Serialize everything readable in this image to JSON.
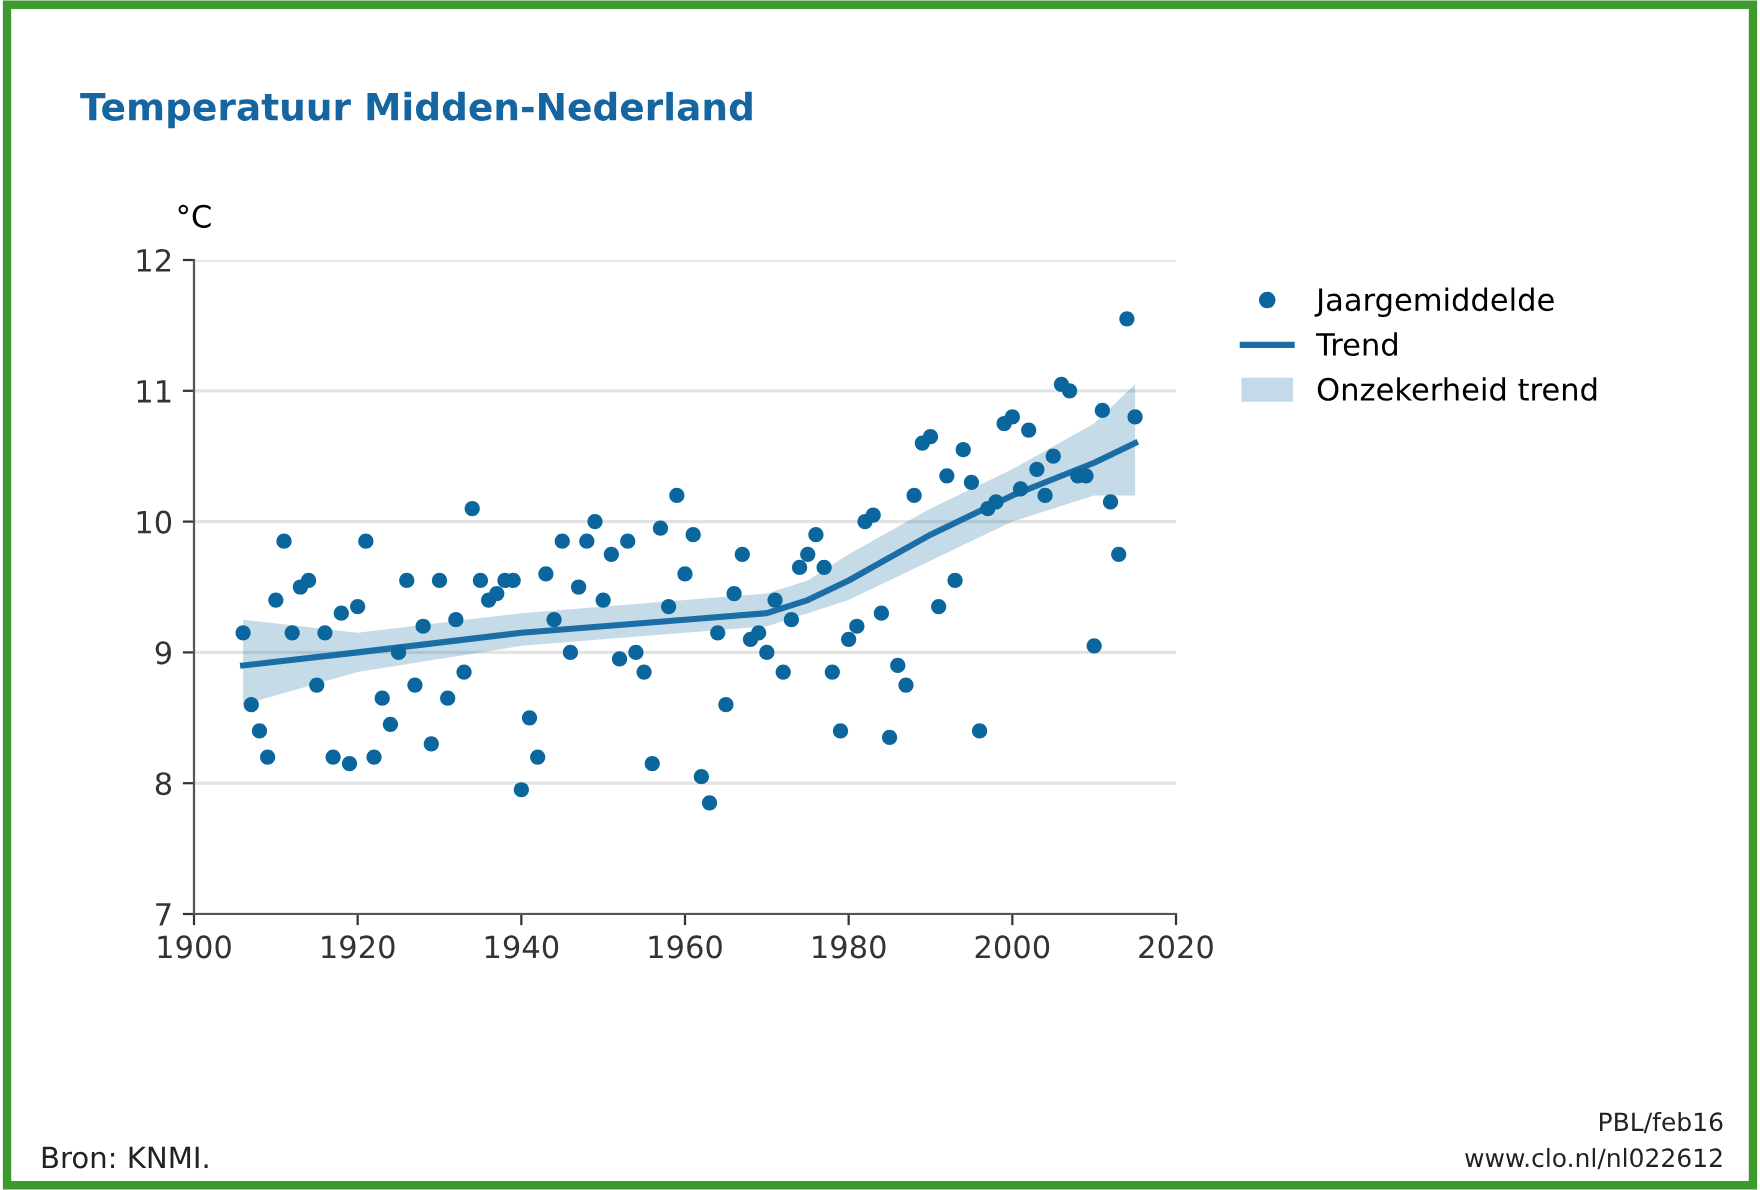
{
  "chart_data": {
    "type": "scatter",
    "title": "Temperatuur Midden-Nederland",
    "ylabel": "°C",
    "annotations": [
      "Onzekerheid trend",
      "Bron: KNMI.",
      "PBL/feb16",
      "www.clo.nl/nl022612"
    ],
    "xlim": [
      1900,
      2020
    ],
    "xticks": [
      1900,
      1920,
      1940,
      1960,
      1980,
      2000,
      2020
    ],
    "ylim": [
      7,
      12
    ],
    "yticks": [
      7,
      8,
      9,
      10,
      11,
      12
    ],
    "grid": "y",
    "legend": "top right",
    "series": [
      {
        "name": "Trend",
        "type": "line",
        "color": "#1b6ea5",
        "x": [
          1906,
          1920,
          1940,
          1960,
          1970,
          1975,
          1980,
          1990,
          2000,
          2010,
          2015
        ],
        "values": [
          8.9,
          9.0,
          9.15,
          9.25,
          9.3,
          9.4,
          9.55,
          9.9,
          10.2,
          10.45,
          10.6
        ],
        "lower": [
          8.6,
          8.85,
          9.05,
          9.15,
          9.2,
          9.3,
          9.4,
          9.7,
          10.0,
          10.2,
          10.2
        ],
        "upper": [
          9.25,
          9.15,
          9.3,
          9.4,
          9.45,
          9.55,
          9.75,
          10.1,
          10.4,
          10.75,
          11.05
        ]
      },
      {
        "name": "Jaargemiddelde",
        "marker": "circle",
        "color": "#0a669c",
        "x": [
          1906,
          1907,
          1908,
          1909,
          1910,
          1911,
          1912,
          1913,
          1914,
          1915,
          1916,
          1917,
          1918,
          1919,
          1920,
          1921,
          1922,
          1923,
          1924,
          1925,
          1926,
          1927,
          1928,
          1929,
          1930,
          1931,
          1932,
          1933,
          1934,
          1935,
          1936,
          1937,
          1938,
          1939,
          1940,
          1941,
          1942,
          1943,
          1944,
          1945,
          1946,
          1947,
          1948,
          1949,
          1950,
          1951,
          1952,
          1953,
          1954,
          1955,
          1956,
          1957,
          1958,
          1959,
          1960,
          1961,
          1962,
          1963,
          1964,
          1965,
          1966,
          1967,
          1968,
          1969,
          1970,
          1971,
          1972,
          1973,
          1974,
          1975,
          1976,
          1977,
          1978,
          1979,
          1980,
          1981,
          1982,
          1983,
          1984,
          1985,
          1986,
          1987,
          1988,
          1989,
          1990,
          1991,
          1992,
          1993,
          1994,
          1995,
          1996,
          1997,
          1998,
          1999,
          2000,
          2001,
          2002,
          2003,
          2004,
          2005,
          2006,
          2007,
          2008,
          2009,
          2010,
          2011,
          2012,
          2013,
          2014,
          2015
        ],
        "values": [
          9.15,
          8.6,
          8.4,
          8.2,
          9.4,
          9.85,
          9.15,
          9.5,
          9.55,
          8.75,
          9.15,
          8.2,
          9.3,
          8.15,
          9.35,
          9.85,
          8.2,
          8.65,
          8.45,
          9.0,
          9.55,
          8.75,
          9.2,
          8.3,
          9.55,
          8.65,
          9.25,
          8.85,
          10.1,
          9.55,
          9.4,
          9.45,
          9.55,
          9.55,
          7.95,
          8.5,
          8.2,
          9.6,
          9.25,
          9.85,
          9.0,
          9.5,
          9.85,
          10.0,
          9.4,
          9.75,
          8.95,
          9.85,
          9.0,
          8.85,
          8.15,
          9.95,
          9.35,
          10.2,
          9.6,
          9.9,
          8.05,
          7.85,
          9.15,
          8.6,
          9.45,
          9.75,
          9.1,
          9.15,
          9.0,
          9.4,
          8.85,
          9.25,
          9.65,
          9.75,
          9.9,
          9.65,
          8.85,
          8.4,
          9.1,
          9.2,
          10.0,
          10.05,
          9.3,
          8.35,
          8.9,
          8.75,
          10.2,
          10.6,
          10.65,
          9.35,
          10.35,
          9.55,
          10.55,
          10.3,
          8.4,
          10.1,
          10.15,
          10.75,
          10.8,
          10.25,
          10.7,
          10.4,
          10.2,
          10.5,
          11.05,
          11.0,
          10.35,
          10.35,
          9.05,
          10.85,
          10.15,
          9.75,
          11.55,
          10.8
        ]
      }
    ]
  }
}
